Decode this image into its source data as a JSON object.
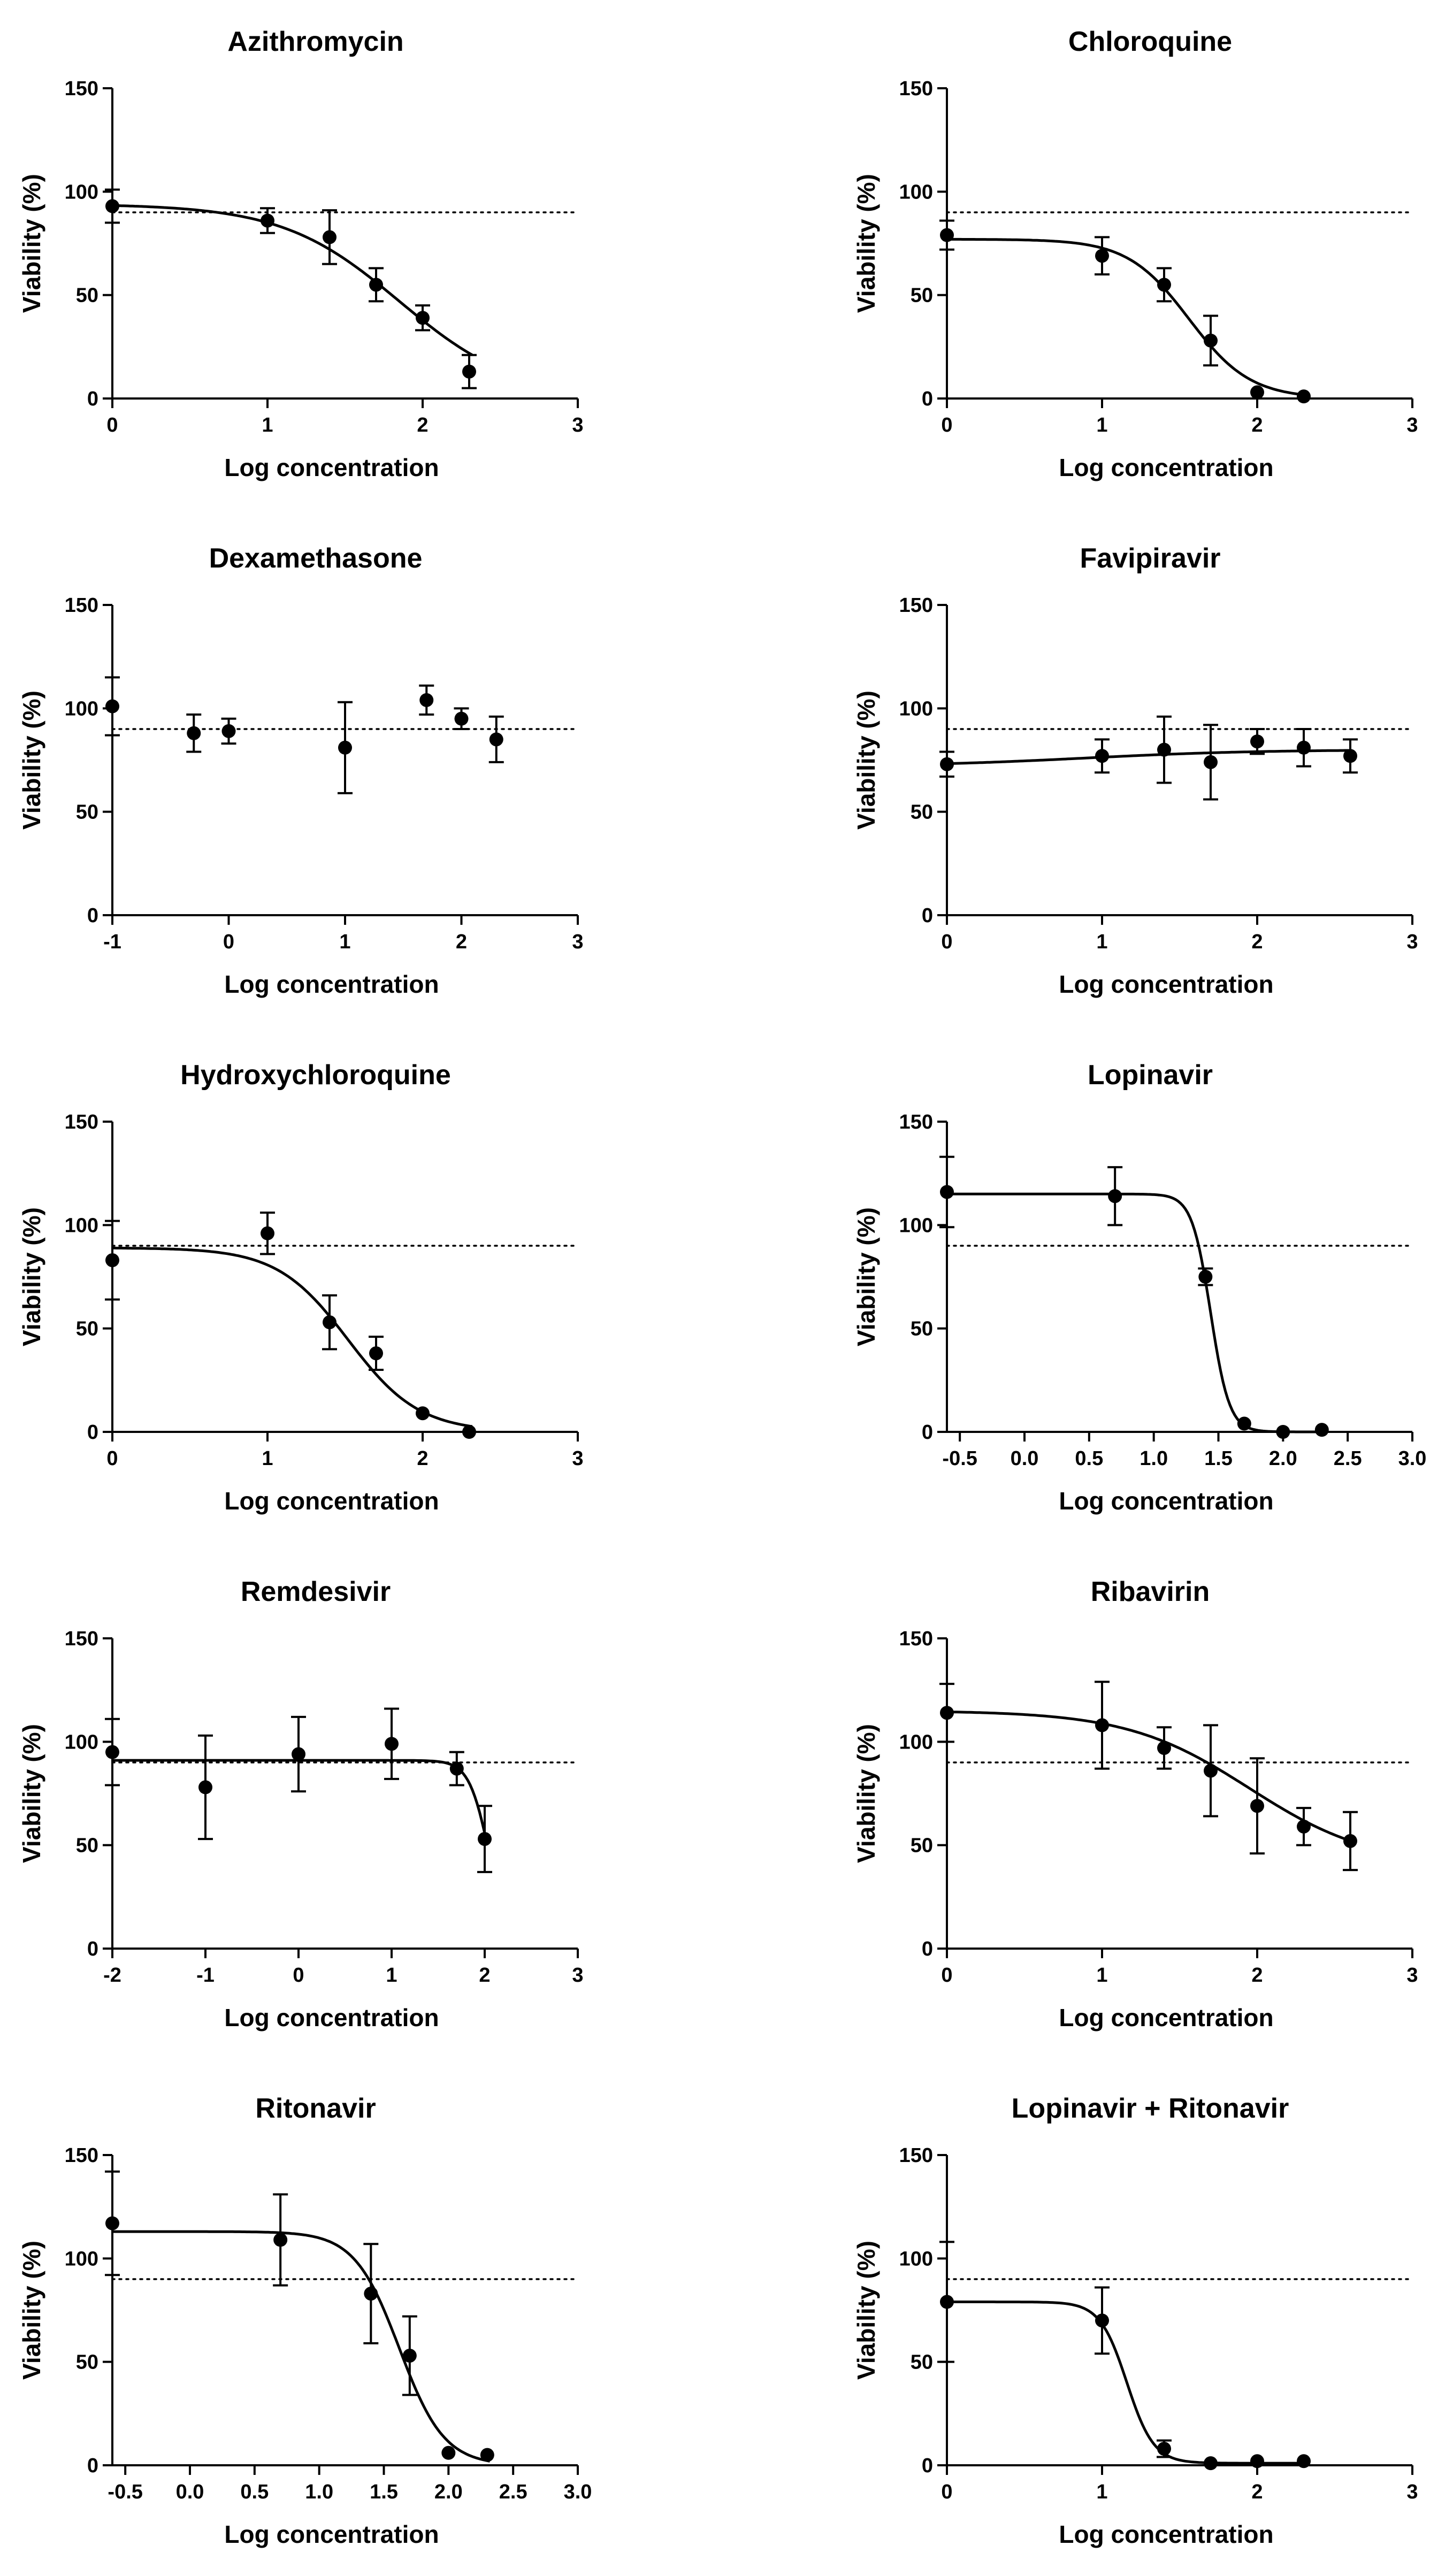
{
  "chart_data": [
    {
      "type": "scatter",
      "title": "Azithromycin",
      "xlabel": "Log concentration",
      "ylabel": "Viability (%)",
      "xlim": [
        0,
        3
      ],
      "ylim": [
        0,
        150
      ],
      "xticks": [
        0,
        1,
        2,
        3
      ],
      "xtick_labels": [
        "0",
        "1",
        "2",
        "3"
      ],
      "yticks": [
        0,
        50,
        100,
        150
      ],
      "ytick_labels": [
        "0",
        "50",
        "100",
        "150"
      ],
      "threshold": 90,
      "points": [
        {
          "x": 0,
          "y": 93,
          "err": 8
        },
        {
          "x": 1,
          "y": 86,
          "err": 6
        },
        {
          "x": 1.4,
          "y": 78,
          "err": 13
        },
        {
          "x": 1.7,
          "y": 55,
          "err": 8
        },
        {
          "x": 2.0,
          "y": 39,
          "err": 6
        },
        {
          "x": 2.3,
          "y": 13,
          "err": 8
        }
      ],
      "fit": {
        "top": 94,
        "bottom": 0,
        "logec50": 1.85,
        "hill": 1.15,
        "x_range": [
          0,
          2.32
        ]
      }
    },
    {
      "type": "scatter",
      "title": "Chloroquine",
      "xlabel": "Log concentration",
      "ylabel": "Viability (%)",
      "xlim": [
        0,
        3
      ],
      "ylim": [
        0,
        150
      ],
      "xticks": [
        0,
        1,
        2,
        3
      ],
      "xtick_labels": [
        "0",
        "1",
        "2",
        "3"
      ],
      "yticks": [
        0,
        50,
        100,
        150
      ],
      "ytick_labels": [
        "0",
        "50",
        "100",
        "150"
      ],
      "threshold": 90,
      "points": [
        {
          "x": 0,
          "y": 79,
          "err": 7
        },
        {
          "x": 1,
          "y": 69,
          "err": 9
        },
        {
          "x": 1.4,
          "y": 55,
          "err": 8
        },
        {
          "x": 1.7,
          "y": 28,
          "err": 12
        },
        {
          "x": 2.0,
          "y": 3,
          "err": 0
        },
        {
          "x": 2.3,
          "y": 1,
          "err": 0
        }
      ],
      "fit": {
        "top": 77,
        "bottom": 0,
        "logec50": 1.56,
        "hill": 2.2,
        "x_range": [
          0,
          2.32
        ]
      }
    },
    {
      "type": "scatter",
      "title": "Dexamethasone",
      "xlabel": "Log concentration",
      "ylabel": "Viability (%)",
      "xlim": [
        -1,
        3
      ],
      "ylim": [
        0,
        150
      ],
      "xticks": [
        -1,
        0,
        1,
        2,
        3
      ],
      "xtick_labels": [
        "-1",
        "0",
        "1",
        "2",
        "3"
      ],
      "yticks": [
        0,
        50,
        100,
        150
      ],
      "ytick_labels": [
        "0",
        "50",
        "100",
        "150"
      ],
      "threshold": 90,
      "points": [
        {
          "x": -1,
          "y": 101,
          "err": 14
        },
        {
          "x": -0.3,
          "y": 88,
          "err": 9
        },
        {
          "x": 0,
          "y": 89,
          "err": 6
        },
        {
          "x": 1,
          "y": 81,
          "err": 22
        },
        {
          "x": 1.7,
          "y": 104,
          "err": 7
        },
        {
          "x": 2.0,
          "y": 95,
          "err": 5
        },
        {
          "x": 2.3,
          "y": 85,
          "err": 11
        }
      ],
      "fit": null
    },
    {
      "type": "scatter",
      "title": "Favipiravir",
      "xlabel": "Log concentration",
      "ylabel": "Viability (%)",
      "xlim": [
        0,
        3
      ],
      "ylim": [
        0,
        150
      ],
      "xticks": [
        0,
        1,
        2,
        3
      ],
      "xtick_labels": [
        "0",
        "1",
        "2",
        "3"
      ],
      "yticks": [
        0,
        50,
        100,
        150
      ],
      "ytick_labels": [
        "0",
        "50",
        "100",
        "150"
      ],
      "threshold": 90,
      "points": [
        {
          "x": 0,
          "y": 73,
          "err": 6
        },
        {
          "x": 1,
          "y": 77,
          "err": 8
        },
        {
          "x": 1.4,
          "y": 80,
          "err": 16
        },
        {
          "x": 1.7,
          "y": 74,
          "err": 18
        },
        {
          "x": 2.0,
          "y": 84,
          "err": 6
        },
        {
          "x": 2.3,
          "y": 81,
          "err": 9
        },
        {
          "x": 2.6,
          "y": 77,
          "err": 8
        }
      ],
      "fit": {
        "top": 72,
        "bottom": 80,
        "logec50": 0.9,
        "hill": 0.8,
        "x_range": [
          0,
          2.6
        ]
      }
    },
    {
      "type": "scatter",
      "title": "Hydroxychloroquine",
      "xlabel": "Log concentration",
      "ylabel": "Viability (%)",
      "xlim": [
        0,
        3
      ],
      "ylim": [
        0,
        150
      ],
      "xticks": [
        0,
        1,
        2,
        3
      ],
      "xtick_labels": [
        "0",
        "1",
        "2",
        "3"
      ],
      "yticks": [
        0,
        50,
        100,
        150
      ],
      "ytick_labels": [
        "0",
        "50",
        "100",
        "150"
      ],
      "threshold": 90,
      "points": [
        {
          "x": 0,
          "y": 83,
          "err": 19
        },
        {
          "x": 1,
          "y": 96,
          "err": 10
        },
        {
          "x": 1.4,
          "y": 53,
          "err": 13
        },
        {
          "x": 1.7,
          "y": 38,
          "err": 8
        },
        {
          "x": 2.0,
          "y": 9,
          "err": 0
        },
        {
          "x": 2.3,
          "y": 0,
          "err": 0
        }
      ],
      "fit": {
        "top": 89,
        "bottom": 0,
        "logec50": 1.52,
        "hill": 1.9,
        "x_range": [
          0,
          2.32
        ]
      }
    },
    {
      "type": "scatter",
      "title": "Lopinavir",
      "xlabel": "Log concentration",
      "ylabel": "Viability (%)",
      "xlim": [
        -0.6,
        3
      ],
      "ylim": [
        0,
        150
      ],
      "xticks": [
        -0.5,
        0,
        0.5,
        1,
        1.5,
        2,
        2.5,
        3
      ],
      "xtick_labels": [
        "-0.5",
        "0.0",
        "0.5",
        "1.0",
        "1.5",
        "2.0",
        "2.5",
        "3.0"
      ],
      "yticks": [
        0,
        50,
        100,
        150
      ],
      "ytick_labels": [
        "0",
        "50",
        "100",
        "150"
      ],
      "threshold": 90,
      "points": [
        {
          "x": -0.6,
          "y": 116,
          "err": 17
        },
        {
          "x": 0.7,
          "y": 114,
          "err": 14
        },
        {
          "x": 1.4,
          "y": 75,
          "err": 4
        },
        {
          "x": 1.7,
          "y": 4,
          "err": 0
        },
        {
          "x": 2.0,
          "y": 0,
          "err": 0
        },
        {
          "x": 2.3,
          "y": 1,
          "err": 0
        }
      ],
      "fit": {
        "top": 115,
        "bottom": 0,
        "logec50": 1.44,
        "hill": 6,
        "x_range": [
          -0.6,
          2.32
        ]
      }
    },
    {
      "type": "scatter",
      "title": "Remdesivir",
      "xlabel": "Log concentration",
      "ylabel": "Viability (%)",
      "xlim": [
        -2,
        3
      ],
      "ylim": [
        0,
        150
      ],
      "xticks": [
        -2,
        -1,
        0,
        1,
        2,
        3
      ],
      "xtick_labels": [
        "-2",
        "-1",
        "0",
        "1",
        "2",
        "3"
      ],
      "yticks": [
        0,
        50,
        100,
        150
      ],
      "ytick_labels": [
        "0",
        "50",
        "100",
        "150"
      ],
      "threshold": 90,
      "points": [
        {
          "x": -2,
          "y": 95,
          "err": 16
        },
        {
          "x": -1,
          "y": 78,
          "err": 25
        },
        {
          "x": 0,
          "y": 94,
          "err": 18
        },
        {
          "x": 1,
          "y": 99,
          "err": 17
        },
        {
          "x": 1.7,
          "y": 87,
          "err": 8
        },
        {
          "x": 2.0,
          "y": 53,
          "err": 16
        }
      ],
      "fit": {
        "top": 91,
        "bottom": 0,
        "logec50": 2.05,
        "hill": 4,
        "x_range": [
          -2,
          2.02
        ]
      }
    },
    {
      "type": "scatter",
      "title": "Ribavirin",
      "xlabel": "Log concentration",
      "ylabel": "Viability (%)",
      "xlim": [
        0,
        3
      ],
      "ylim": [
        0,
        150
      ],
      "xticks": [
        0,
        1,
        2,
        3
      ],
      "xtick_labels": [
        "0",
        "1",
        "2",
        "3"
      ],
      "yticks": [
        0,
        50,
        100,
        150
      ],
      "ytick_labels": [
        "0",
        "50",
        "100",
        "150"
      ],
      "threshold": 90,
      "points": [
        {
          "x": 0,
          "y": 114,
          "err": 14
        },
        {
          "x": 1,
          "y": 108,
          "err": 21
        },
        {
          "x": 1.4,
          "y": 97,
          "err": 10
        },
        {
          "x": 1.7,
          "y": 86,
          "err": 22
        },
        {
          "x": 2.0,
          "y": 69,
          "err": 23
        },
        {
          "x": 2.3,
          "y": 59,
          "err": 9
        },
        {
          "x": 2.6,
          "y": 52,
          "err": 14
        }
      ],
      "fit": {
        "top": 115,
        "bottom": 40,
        "logec50": 1.95,
        "hill": 1.1,
        "x_range": [
          0,
          2.6
        ]
      }
    },
    {
      "type": "scatter",
      "title": "Ritonavir",
      "xlabel": "Log concentration",
      "ylabel": "Viability (%)",
      "xlim": [
        -0.6,
        3
      ],
      "ylim": [
        0,
        150
      ],
      "xticks": [
        -0.5,
        0,
        0.5,
        1,
        1.5,
        2,
        2.5,
        3
      ],
      "xtick_labels": [
        "-0.5",
        "0.0",
        "0.5",
        "1.0",
        "1.5",
        "2.0",
        "2.5",
        "3.0"
      ],
      "yticks": [
        0,
        50,
        100,
        150
      ],
      "ytick_labels": [
        "0",
        "50",
        "100",
        "150"
      ],
      "threshold": 90,
      "points": [
        {
          "x": -0.6,
          "y": 117,
          "err": 25
        },
        {
          "x": 0.7,
          "y": 109,
          "err": 22
        },
        {
          "x": 1.4,
          "y": 83,
          "err": 24
        },
        {
          "x": 1.7,
          "y": 53,
          "err": 19
        },
        {
          "x": 2.0,
          "y": 6,
          "err": 0
        },
        {
          "x": 2.3,
          "y": 5,
          "err": 0
        }
      ],
      "fit": {
        "top": 113,
        "bottom": 0,
        "logec50": 1.62,
        "hill": 2.5,
        "x_range": [
          -0.6,
          2.32
        ]
      }
    },
    {
      "type": "scatter",
      "title": "Lopinavir + Ritonavir",
      "xlabel": "Log concentration",
      "ylabel": "Viability (%)",
      "xlim": [
        0,
        3
      ],
      "ylim": [
        0,
        150
      ],
      "xticks": [
        0,
        1,
        2,
        3
      ],
      "xtick_labels": [
        "0",
        "1",
        "2",
        "3"
      ],
      "yticks": [
        0,
        50,
        100,
        150
      ],
      "ytick_labels": [
        "0",
        "50",
        "100",
        "150"
      ],
      "threshold": 90,
      "points": [
        {
          "x": 0,
          "y": 79,
          "err": 29
        },
        {
          "x": 1,
          "y": 70,
          "err": 16
        },
        {
          "x": 1.4,
          "y": 8,
          "err": 4
        },
        {
          "x": 1.7,
          "y": 1,
          "err": 0
        },
        {
          "x": 2.0,
          "y": 2,
          "err": 0
        },
        {
          "x": 2.3,
          "y": 2,
          "err": 0
        }
      ],
      "fit": {
        "top": 79,
        "bottom": 1,
        "logec50": 1.16,
        "hill": 5,
        "x_range": [
          0,
          2.32
        ]
      }
    }
  ]
}
